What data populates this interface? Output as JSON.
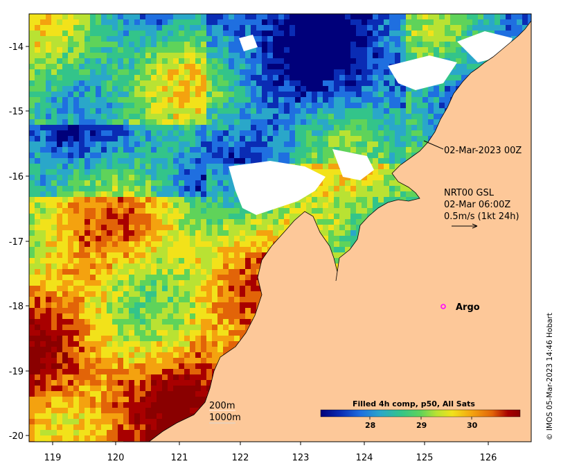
{
  "map": {
    "x_ticks": [
      "119",
      "120",
      "121",
      "122",
      "123",
      "124",
      "125",
      "126"
    ],
    "y_ticks": [
      "-14",
      "-15",
      "-16",
      "-17",
      "-18",
      "-19",
      "-20"
    ],
    "land_color": "#fdc899",
    "sst_colors": [
      "#00007a",
      "#0a2cb4",
      "#1f6fe0",
      "#2aa7c9",
      "#33c48a",
      "#5fd35a",
      "#b9e233",
      "#f2e21a",
      "#f4a20f",
      "#e26408",
      "#a80000",
      "#8a0000"
    ],
    "annotations": {
      "analysis_time": "02-Mar-2023 00Z",
      "current_label_1": "NRT00 GSL",
      "current_label_2": "02-Mar 06:00Z",
      "current_label_3": "0.5m/s (1kt 24h)",
      "argo_label": "Argo",
      "depth_200": "200m",
      "depth_1000": "1000m",
      "credit": "© IMOS 05-Mar-2023 14:46 Hobart"
    }
  },
  "colorbar": {
    "title": "Filled 4h comp, p50, All Sats",
    "ticks": [
      "28",
      "29",
      "30"
    ]
  }
}
